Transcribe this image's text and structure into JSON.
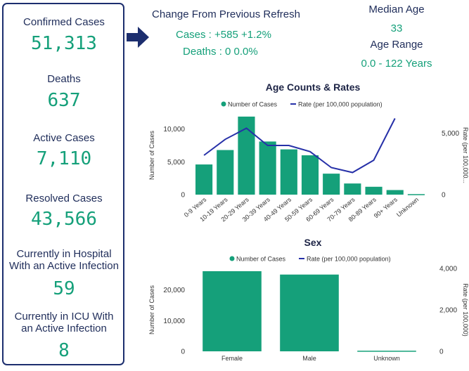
{
  "kpis": [
    {
      "label_lines": [
        "Confirmed Cases"
      ],
      "value": "51,313"
    },
    {
      "label_lines": [
        "Deaths"
      ],
      "value": "637"
    },
    {
      "label_lines": [
        "Active Cases"
      ],
      "value": "7,110"
    },
    {
      "label_lines": [
        "Resolved Cases"
      ],
      "value": "43,566"
    },
    {
      "label_lines": [
        "Currently in Hospital",
        "With an Active Infection"
      ],
      "value": "59"
    },
    {
      "label_lines": [
        "Currently in ICU With",
        "an Active Infection"
      ],
      "value": "8"
    }
  ],
  "change": {
    "title": "Change From Previous Refresh",
    "cases": "Cases : +585 +1.2%",
    "deaths": "Deaths : 0 0.0%"
  },
  "age_stats": {
    "median_label": "Median Age",
    "median_value": "33",
    "range_label": "Age Range",
    "range_value": "0.0 - 122 Years"
  },
  "colors": {
    "bar": "#15a07a",
    "line": "#2630a8",
    "text": "#1f2d5a"
  },
  "chart_data": [
    {
      "type": "bar",
      "title": "Age Counts & Rates",
      "legend": [
        "Number of Cases",
        "Rate (per 100,000 population)"
      ],
      "categories": [
        "0-9 Years",
        "10-19 Years",
        "20-29 Years",
        "30-39 Years",
        "40-49 Years",
        "50-59 Years",
        "60-69 Years",
        "70-79 Years",
        "80-89 Years",
        "90+ Years",
        "Unknown"
      ],
      "series": [
        {
          "name": "Number of Cases",
          "axis": "left",
          "values": [
            4600,
            6800,
            11900,
            8100,
            6900,
            6000,
            3200,
            1700,
            1200,
            700,
            80
          ]
        },
        {
          "name": "Rate (per 100,000 population)",
          "axis": "right",
          "type": "line",
          "values": [
            3200,
            4500,
            5400,
            4000,
            4000,
            3500,
            2200,
            1800,
            2800,
            6200,
            null
          ]
        }
      ],
      "ylabel": "Number of Cases",
      "y2label": "Rate (per 100,000...",
      "ylim": [
        0,
        12000
      ],
      "y2lim": [
        0,
        6400
      ],
      "yticks": [
        "0",
        "5,000",
        "10,000"
      ],
      "y2ticks": [
        "0",
        "5,000"
      ],
      "legend_position": "top"
    },
    {
      "type": "bar",
      "title": "Sex",
      "legend": [
        "Number of Cases",
        "Rate (per 100,000 population)"
      ],
      "categories": [
        "Female",
        "Male",
        "Unknown"
      ],
      "series": [
        {
          "name": "Number of Cases",
          "axis": "left",
          "values": [
            26100,
            25000,
            200
          ]
        },
        {
          "name": "Rate (per 100,000 population)",
          "axis": "right",
          "type": "line",
          "values": [
            null,
            null,
            null
          ]
        }
      ],
      "ylabel": "Number of Cases",
      "y2label": "Rate (per 100,000)",
      "ylim": [
        0,
        27000
      ],
      "y2lim": [
        0,
        4000
      ],
      "yticks": [
        "0",
        "10,000",
        "20,000"
      ],
      "y2ticks": [
        "0",
        "2,000",
        "4,000"
      ],
      "legend_position": "top"
    }
  ]
}
